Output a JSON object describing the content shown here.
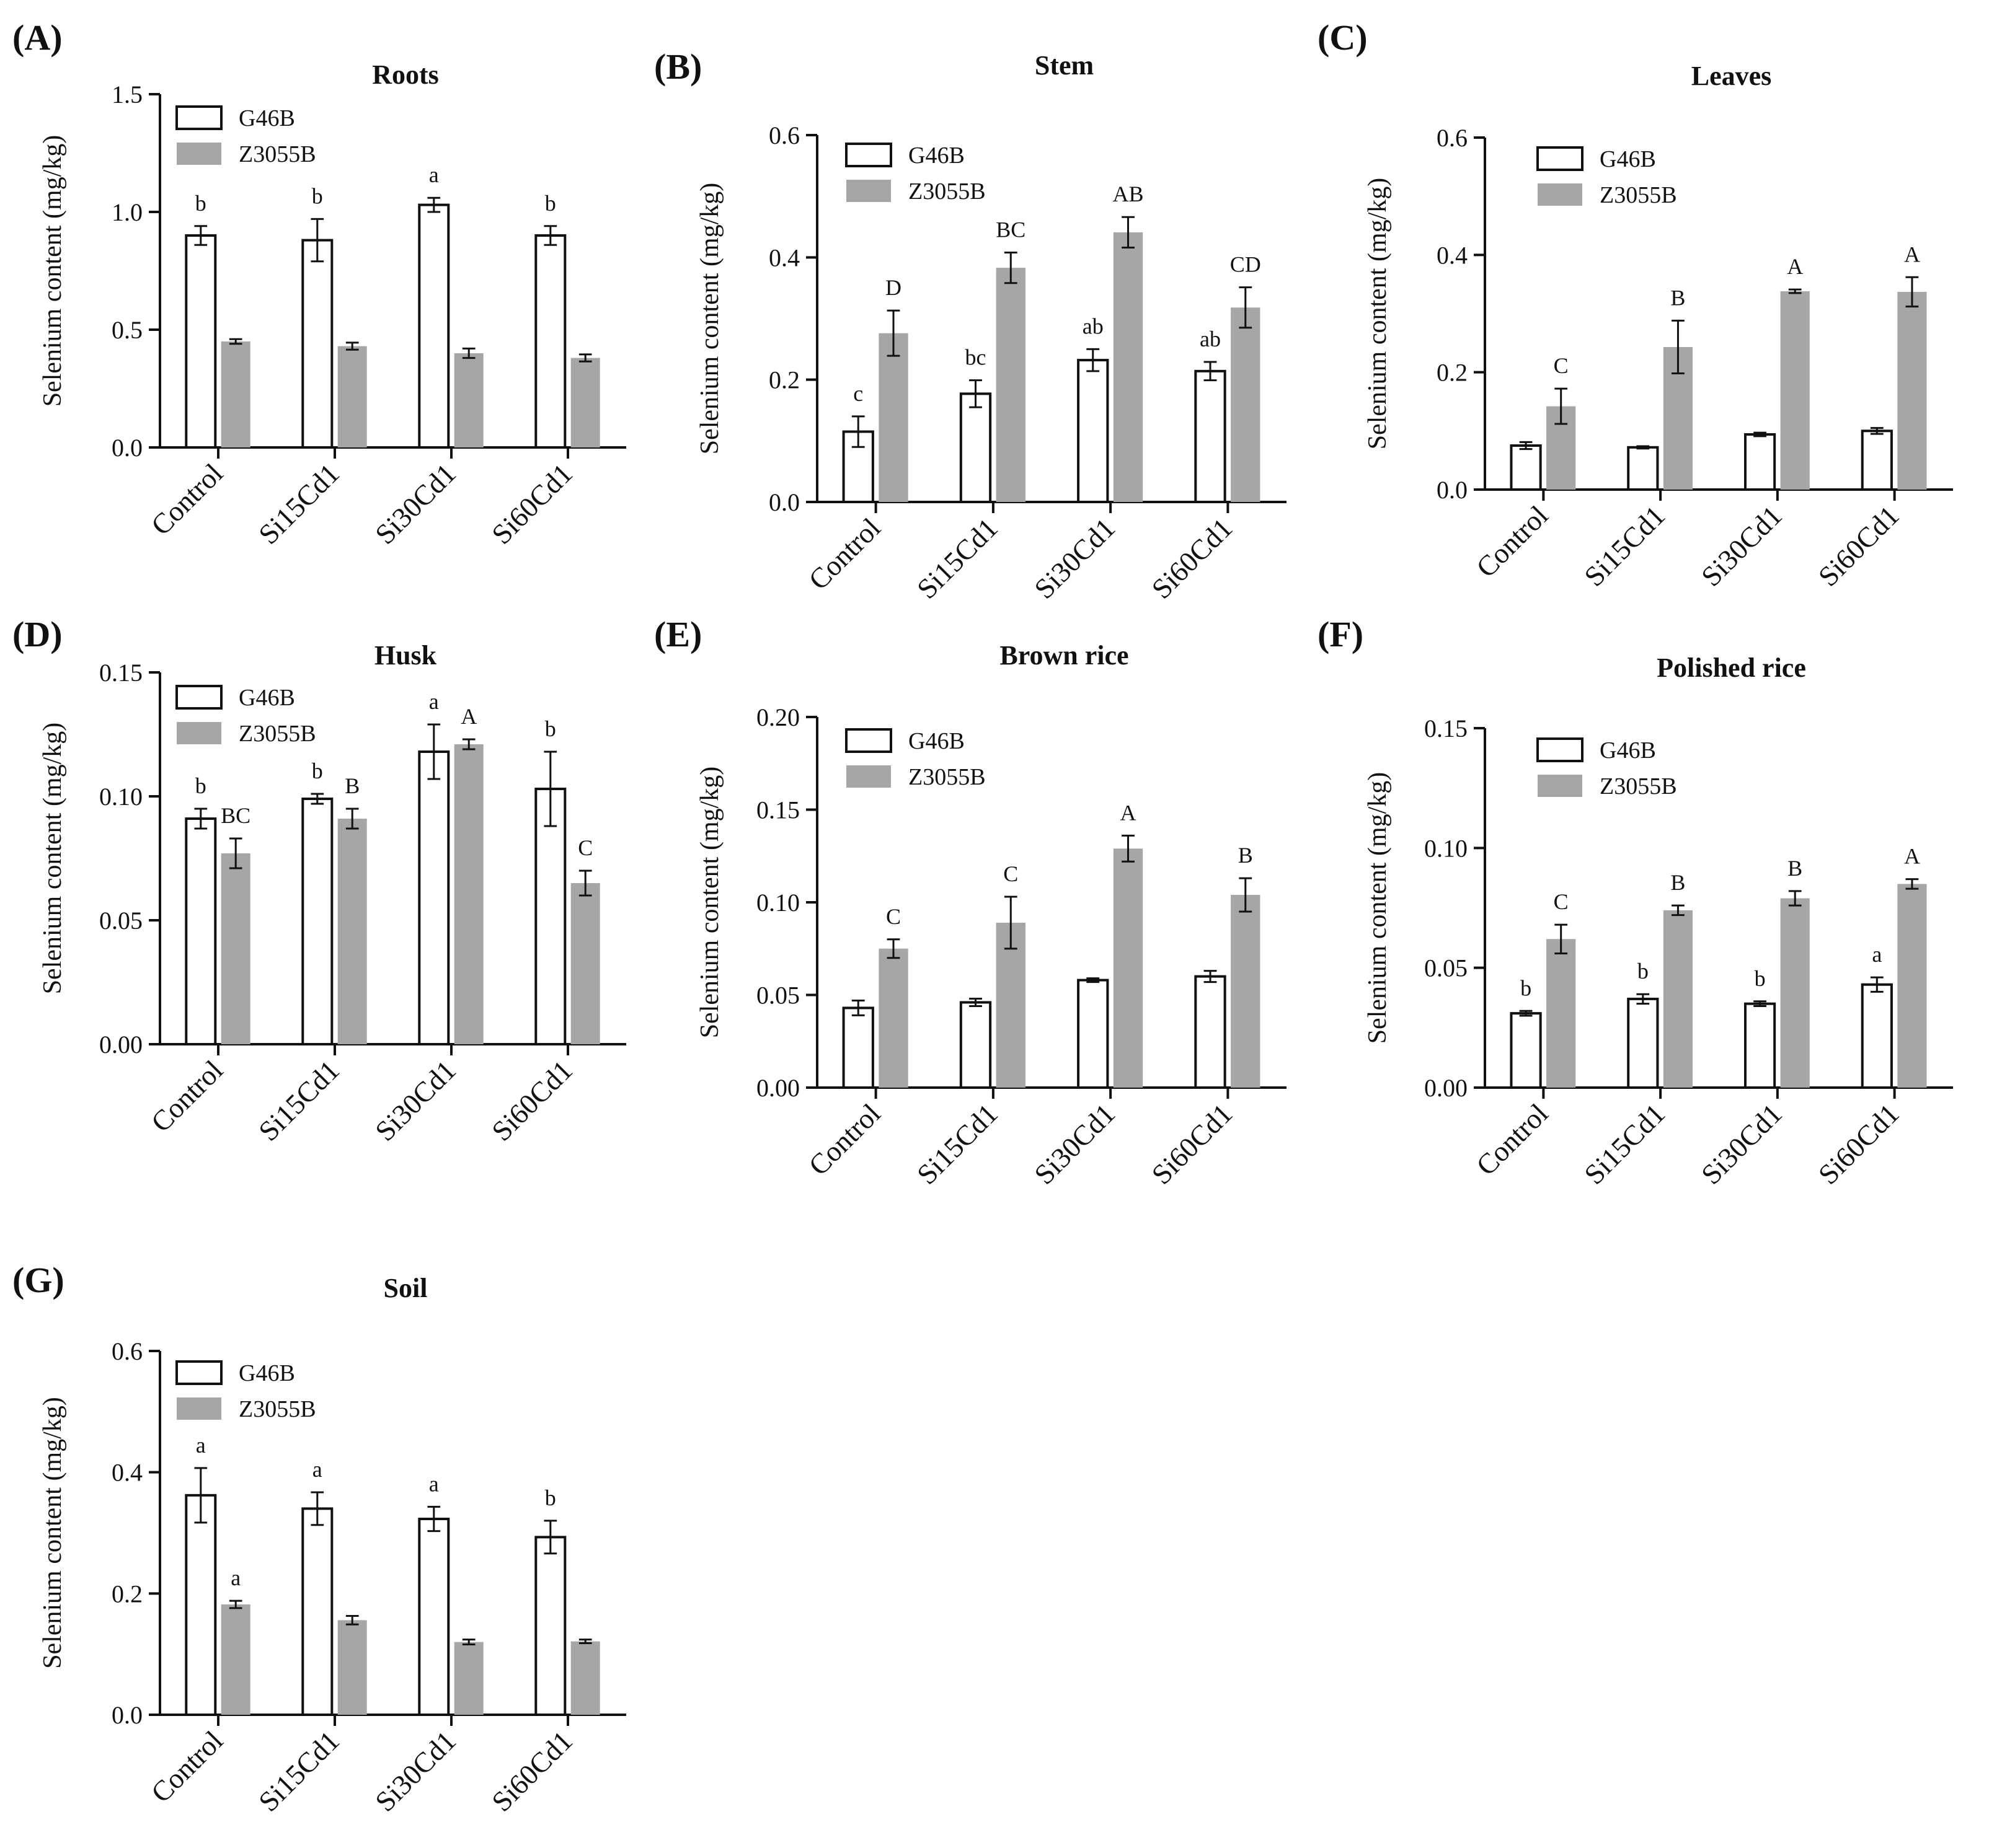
{
  "figure": {
    "series_names": [
      "G46B",
      "Z3055B"
    ],
    "colors": {
      "g46b_fill": "#ffffff",
      "z3055b_fill": "#a6a6a6",
      "ink": "#111111"
    }
  },
  "chart_data": [
    {
      "panel": "(A)",
      "type": "bar",
      "title": "Roots",
      "ylabel": "Selenium content (mg/kg)",
      "ylim": [
        0,
        1.5
      ],
      "yticks": [
        "0.0",
        "0.5",
        "1.0",
        "1.5"
      ],
      "categories": [
        "Control",
        "Si15Cd1",
        "Si30Cd1",
        "Si60Cd1"
      ],
      "legend": [
        "G46B",
        "Z3055B"
      ],
      "series": [
        {
          "name": "G46B",
          "values": [
            0.9,
            0.88,
            1.03,
            0.9
          ],
          "errors": [
            0.04,
            0.09,
            0.03,
            0.04
          ],
          "labels": [
            "b",
            "b",
            "a",
            "b"
          ]
        },
        {
          "name": "Z3055B",
          "values": [
            0.45,
            0.43,
            0.4,
            0.38
          ],
          "errors": [
            0.01,
            0.015,
            0.02,
            0.015
          ],
          "labels": [
            "",
            "",
            "",
            ""
          ]
        }
      ]
    },
    {
      "panel": "(B)",
      "type": "bar",
      "title": "Stem",
      "ylabel": "Selenium content (mg/kg)",
      "ylim": [
        0,
        0.6
      ],
      "yticks": [
        "0.0",
        "0.2",
        "0.4",
        "0.6"
      ],
      "categories": [
        "Control",
        "Si15Cd1",
        "Si30Cd1",
        "Si60Cd1"
      ],
      "legend": [
        "G46B",
        "Z3055B"
      ],
      "series": [
        {
          "name": "G46B",
          "values": [
            0.115,
            0.177,
            0.232,
            0.214
          ],
          "errors": [
            0.025,
            0.022,
            0.018,
            0.015
          ],
          "labels": [
            "c",
            "bc",
            "ab",
            "ab"
          ]
        },
        {
          "name": "Z3055B",
          "values": [
            0.276,
            0.383,
            0.441,
            0.318
          ],
          "errors": [
            0.037,
            0.025,
            0.025,
            0.033
          ],
          "labels": [
            "D",
            "BC",
            "AB",
            "CD"
          ]
        }
      ]
    },
    {
      "panel": "(C)",
      "type": "bar",
      "title": "Leaves",
      "ylabel": "Selenium content (mg/kg)",
      "ylim": [
        0,
        0.6
      ],
      "yticks": [
        "0.0",
        "0.2",
        "0.4",
        "0.6"
      ],
      "categories": [
        "Control",
        "Si15Cd1",
        "Si30Cd1",
        "Si60Cd1"
      ],
      "legend": [
        "G46B",
        "Z3055B"
      ],
      "series": [
        {
          "name": "G46B",
          "values": [
            0.075,
            0.072,
            0.094,
            0.1
          ],
          "errors": [
            0.006,
            0.002,
            0.003,
            0.005
          ],
          "labels": [
            "",
            "",
            "",
            ""
          ]
        },
        {
          "name": "Z3055B",
          "values": [
            0.142,
            0.243,
            0.338,
            0.337
          ],
          "errors": [
            0.03,
            0.045,
            0.003,
            0.025
          ],
          "labels": [
            "C",
            "B",
            "A",
            "A"
          ]
        }
      ]
    },
    {
      "panel": "(D)",
      "type": "bar",
      "title": "Husk",
      "ylabel": "Selenium content (mg/kg)",
      "ylim": [
        0,
        0.15
      ],
      "yticks": [
        "0.00",
        "0.05",
        "0.10",
        "0.15"
      ],
      "categories": [
        "Control",
        "Si15Cd1",
        "Si30Cd1",
        "Si60Cd1"
      ],
      "legend": [
        "G46B",
        "Z3055B"
      ],
      "series": [
        {
          "name": "G46B",
          "values": [
            0.091,
            0.099,
            0.118,
            0.103
          ],
          "errors": [
            0.004,
            0.002,
            0.011,
            0.015
          ],
          "labels": [
            "b",
            "b",
            "a",
            "b"
          ]
        },
        {
          "name": "Z3055B",
          "values": [
            0.077,
            0.091,
            0.121,
            0.065
          ],
          "errors": [
            0.006,
            0.004,
            0.002,
            0.005
          ],
          "labels": [
            "BC",
            "B",
            "A",
            "C"
          ]
        }
      ]
    },
    {
      "panel": "(E)",
      "type": "bar",
      "title": "Brown rice",
      "ylabel": "Selenium content (mg/kg)",
      "ylim": [
        0,
        0.2
      ],
      "yticks": [
        "0.00",
        "0.05",
        "0.10",
        "0.15",
        "0.20"
      ],
      "categories": [
        "Control",
        "Si15Cd1",
        "Si30Cd1",
        "Si60Cd1"
      ],
      "legend": [
        "G46B",
        "Z3055B"
      ],
      "series": [
        {
          "name": "G46B",
          "values": [
            0.043,
            0.046,
            0.058,
            0.06
          ],
          "errors": [
            0.004,
            0.002,
            0.001,
            0.003
          ],
          "labels": [
            "",
            "",
            "",
            ""
          ]
        },
        {
          "name": "Z3055B",
          "values": [
            0.075,
            0.089,
            0.129,
            0.104
          ],
          "errors": [
            0.005,
            0.014,
            0.007,
            0.009
          ],
          "labels": [
            "C",
            "C",
            "A",
            "B"
          ]
        }
      ]
    },
    {
      "panel": "(F)",
      "type": "bar",
      "title": "Polished rice",
      "ylabel": "Selenium content (mg/kg)",
      "ylim": [
        0,
        0.15
      ],
      "yticks": [
        "0.00",
        "0.05",
        "0.10",
        "0.15"
      ],
      "categories": [
        "Control",
        "Si15Cd1",
        "Si30Cd1",
        "Si60Cd1"
      ],
      "legend": [
        "G46B",
        "Z3055B"
      ],
      "series": [
        {
          "name": "G46B",
          "values": [
            0.031,
            0.037,
            0.035,
            0.043
          ],
          "errors": [
            0.001,
            0.002,
            0.001,
            0.003
          ],
          "labels": [
            "b",
            "b",
            "b",
            "a"
          ]
        },
        {
          "name": "Z3055B",
          "values": [
            0.062,
            0.074,
            0.079,
            0.085
          ],
          "errors": [
            0.006,
            0.002,
            0.003,
            0.002
          ],
          "labels": [
            "C",
            "B",
            "B",
            "A"
          ]
        }
      ]
    },
    {
      "panel": "(G)",
      "type": "bar",
      "title": "Soil",
      "ylabel": "Selenium content (mg/kg)",
      "ylim": [
        0,
        0.6
      ],
      "yticks": [
        "0.0",
        "0.2",
        "0.4",
        "0.6"
      ],
      "categories": [
        "Control",
        "Si15Cd1",
        "Si30Cd1",
        "Si60Cd1"
      ],
      "legend": [
        "G46B",
        "Z3055B"
      ],
      "series": [
        {
          "name": "G46B",
          "values": [
            0.362,
            0.34,
            0.323,
            0.293
          ],
          "errors": [
            0.045,
            0.027,
            0.02,
            0.027
          ],
          "labels": [
            "a",
            "a",
            "a",
            "b"
          ]
        },
        {
          "name": "Z3055B",
          "values": [
            0.182,
            0.156,
            0.12,
            0.121
          ],
          "errors": [
            0.006,
            0.007,
            0.004,
            0.003
          ],
          "labels": [
            "a",
            "",
            "",
            ""
          ]
        }
      ]
    }
  ]
}
